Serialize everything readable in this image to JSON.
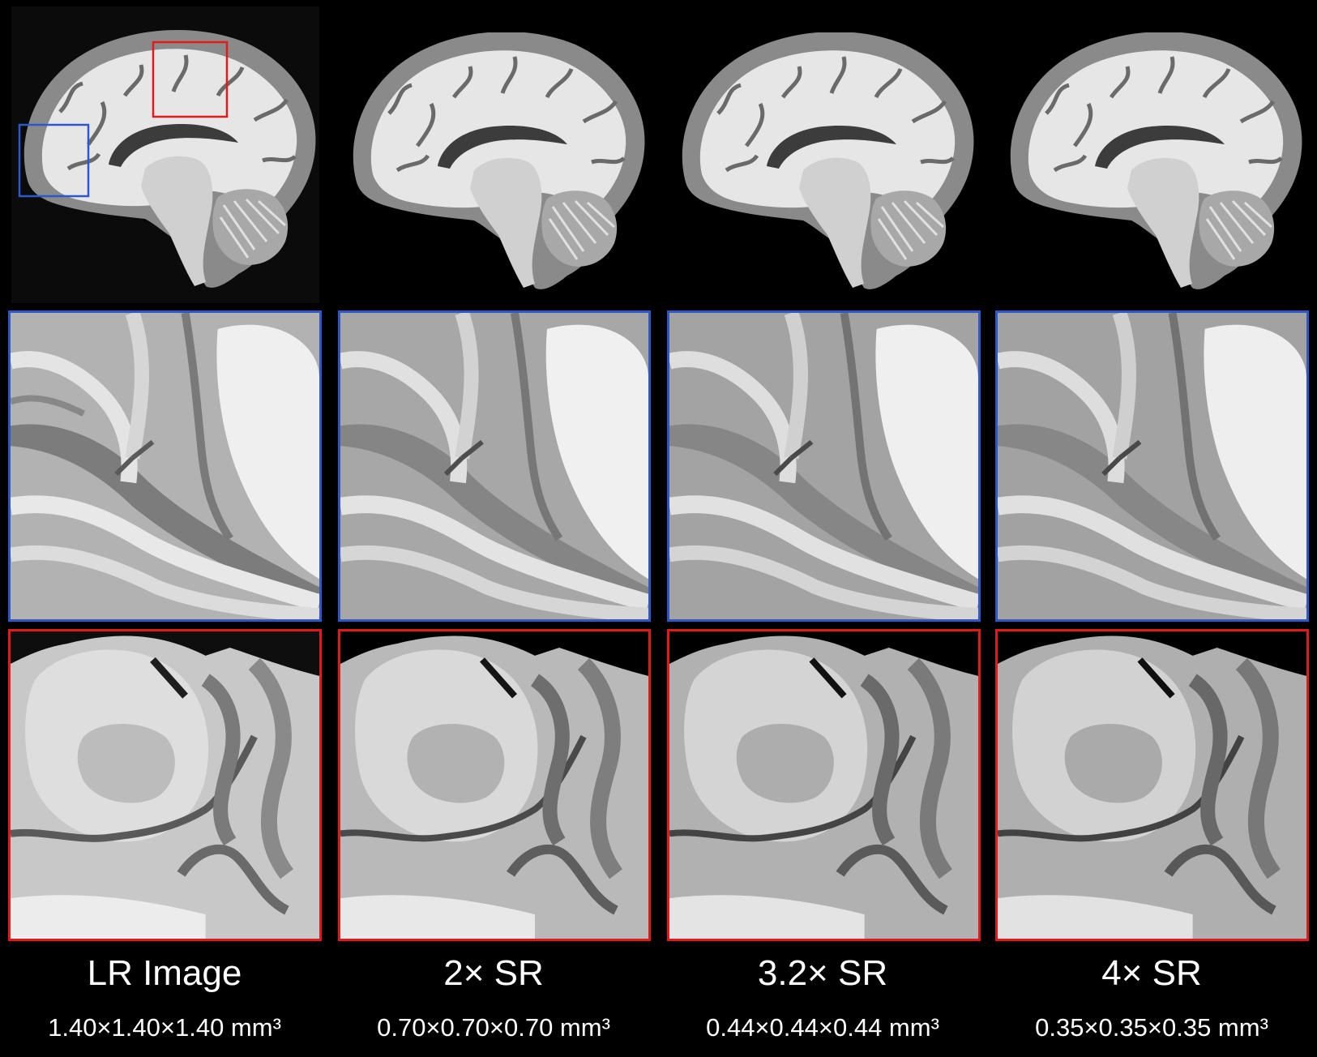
{
  "columns": [
    {
      "label": "LR Image",
      "resolution": "1.40×1.40×1.40 mm³",
      "style": "pixelated"
    },
    {
      "label": "2× SR",
      "resolution": "0.70×0.70×0.70 mm³",
      "style": "smooth"
    },
    {
      "label": "3.2× SR",
      "resolution": "0.44×0.44×0.44 mm³",
      "style": "smooth"
    },
    {
      "label": "4× SR",
      "resolution": "0.35×0.35×0.35 mm³",
      "style": "smooth"
    }
  ],
  "rows": [
    "sagittal-brain-slice",
    "zoom-frontal-region",
    "zoom-parietal-region"
  ],
  "colors": {
    "background": "#000000",
    "blue_box": "#2c58c8",
    "red_box": "#e21a1a",
    "white_matter": "#ececec",
    "gray_matter": "#8c8c8c",
    "sulci": "#3a3a3a"
  }
}
